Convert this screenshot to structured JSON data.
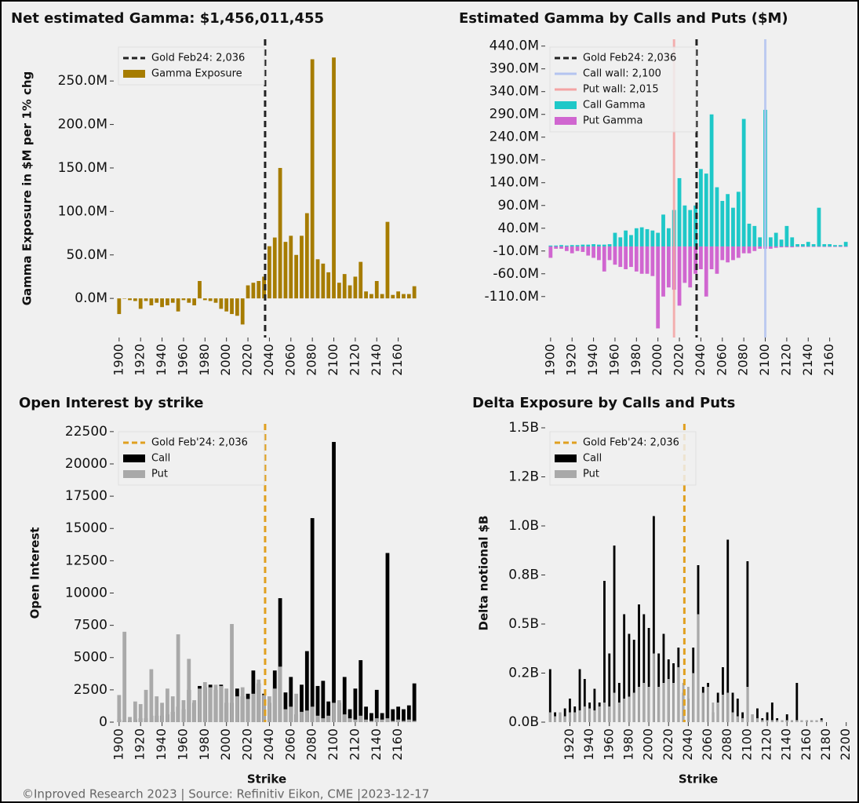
{
  "footer": "©Inproved Research 2023 | Source: Refinitiv Eikon, CME |2023-12-17",
  "chart_data": [
    {
      "type": "bar",
      "title": "Net estimated Gamma: $1,456,011,455",
      "ylabel": "Gamma Exposure in $M per 1% chg",
      "legend": "upper left",
      "x": [
        1900,
        1905,
        1910,
        1915,
        1920,
        1925,
        1930,
        1935,
        1940,
        1945,
        1950,
        1955,
        1960,
        1965,
        1970,
        1975,
        1980,
        1985,
        1990,
        1995,
        2000,
        2005,
        2010,
        2015,
        2020,
        2025,
        2030,
        2035,
        2040,
        2045,
        2050,
        2055,
        2060,
        2065,
        2070,
        2075,
        2080,
        2085,
        2090,
        2095,
        2100,
        2105,
        2110,
        2115,
        2120,
        2125,
        2130,
        2135,
        2140,
        2145,
        2150,
        2155,
        2160,
        2165,
        2170,
        2175
      ],
      "xlim": [
        1895,
        2180
      ],
      "xticks": [
        1900,
        1920,
        1940,
        1960,
        1980,
        2000,
        2020,
        2040,
        2060,
        2080,
        2100,
        2120,
        2140,
        2160
      ],
      "ylim": [
        -45,
        298
      ],
      "yticks": [
        {
          "value": 0,
          "label": "0.0M"
        },
        {
          "value": 50,
          "label": "50.0M"
        },
        {
          "value": 100,
          "label": "100.0M"
        },
        {
          "value": 150,
          "label": "150.0M"
        },
        {
          "value": 200,
          "label": "200.0M"
        },
        {
          "value": 250,
          "label": "250.0M"
        }
      ],
      "vlines": [
        {
          "name": "Gold Feb24: 2,036",
          "value": 2036,
          "color": "#222222",
          "dash": true
        }
      ],
      "series": [
        {
          "name": "Gamma Exposure",
          "color": "#a67c00",
          "values": [
            -18,
            0,
            -2,
            -3,
            -12,
            -3,
            -8,
            -5,
            -10,
            -8,
            -5,
            -15,
            -2,
            -5,
            -8,
            20,
            -2,
            -3,
            -5,
            -12,
            -15,
            -18,
            -20,
            -30,
            15,
            18,
            20,
            25,
            60,
            70,
            150,
            65,
            72,
            50,
            72,
            98,
            275,
            45,
            40,
            30,
            277,
            18,
            28,
            15,
            25,
            42,
            8,
            5,
            20,
            5,
            88,
            4,
            8,
            5,
            5,
            14
          ]
        }
      ]
    },
    {
      "type": "bar",
      "title": "Estimated Gamma by Calls and Puts ($M)",
      "legend": "upper left",
      "x": [
        1900,
        1905,
        1910,
        1915,
        1920,
        1925,
        1930,
        1935,
        1940,
        1945,
        1950,
        1955,
        1960,
        1965,
        1970,
        1975,
        1980,
        1985,
        1990,
        1995,
        2000,
        2005,
        2010,
        2015,
        2020,
        2025,
        2030,
        2035,
        2040,
        2045,
        2050,
        2055,
        2060,
        2065,
        2070,
        2075,
        2080,
        2085,
        2090,
        2095,
        2100,
        2105,
        2110,
        2115,
        2120,
        2125,
        2130,
        2135,
        2140,
        2145,
        2150,
        2155,
        2160,
        2165,
        2170,
        2175
      ],
      "xlim": [
        1895,
        2180
      ],
      "xticks": [
        1900,
        1920,
        1940,
        1960,
        1980,
        2000,
        2020,
        2040,
        2060,
        2080,
        2100,
        2120,
        2140,
        2160
      ],
      "ylim": [
        -200,
        455
      ],
      "yticks": [
        {
          "value": 440,
          "label": "440.0M"
        },
        {
          "value": 390,
          "label": "390.0M"
        },
        {
          "value": 340,
          "label": "340.0M"
        },
        {
          "value": 290,
          "label": "290.0M"
        },
        {
          "value": 240,
          "label": "240.0M"
        },
        {
          "value": 190,
          "label": "190.0M"
        },
        {
          "value": 140,
          "label": "140.0M"
        },
        {
          "value": 90,
          "label": "90.0M"
        },
        {
          "value": 40,
          "label": "40.0M"
        },
        {
          "value": -10,
          "label": "-10.0M"
        },
        {
          "value": -60,
          "label": "-60.0M"
        },
        {
          "value": -110,
          "label": "-110.0M"
        }
      ],
      "vlines": [
        {
          "name": "Gold Feb24: 2,036",
          "value": 2036,
          "color": "#222222",
          "dash": true
        },
        {
          "name": "Call wall: 2,100",
          "value": 2100,
          "color": "#b4c4f0",
          "dash": false
        },
        {
          "name": "Put wall: 2,015",
          "value": 2015,
          "color": "#f4a4a4",
          "dash": false
        }
      ],
      "series": [
        {
          "name": "Call Gamma",
          "color": "#1ec8c8",
          "values": [
            2,
            2,
            3,
            2,
            3,
            3,
            4,
            4,
            5,
            4,
            4,
            5,
            30,
            20,
            35,
            25,
            40,
            42,
            38,
            35,
            30,
            70,
            40,
            80,
            150,
            90,
            80,
            90,
            170,
            160,
            290,
            130,
            100,
            115,
            85,
            120,
            280,
            50,
            45,
            20,
            300,
            20,
            30,
            15,
            45,
            20,
            5,
            5,
            10,
            5,
            85,
            5,
            5,
            3,
            3,
            10
          ]
        },
        {
          "name": "Put Gamma",
          "color": "#d066d0",
          "values": [
            -25,
            -5,
            -5,
            -10,
            -15,
            -10,
            -12,
            -20,
            -25,
            -30,
            -55,
            -30,
            -40,
            -45,
            -50,
            -45,
            -55,
            -60,
            -60,
            -65,
            -180,
            -110,
            -90,
            -95,
            -130,
            -80,
            -90,
            -60,
            -50,
            -110,
            -50,
            -60,
            -30,
            -35,
            -30,
            -25,
            -15,
            -15,
            -10,
            -5,
            -5,
            -5,
            -3,
            -2,
            -2,
            -2,
            -1,
            -1,
            -1,
            -1,
            -1,
            -1,
            -1,
            -1,
            -1,
            -1
          ]
        }
      ]
    },
    {
      "type": "bar",
      "title": "Open Interest by strike",
      "ylabel": "Open Interest",
      "xlabel": "Strike",
      "legend": "upper left",
      "x": [
        1900,
        1905,
        1910,
        1915,
        1920,
        1925,
        1930,
        1935,
        1940,
        1945,
        1950,
        1955,
        1960,
        1965,
        1970,
        1975,
        1980,
        1985,
        1990,
        1995,
        2000,
        2005,
        2010,
        2015,
        2020,
        2025,
        2030,
        2035,
        2040,
        2045,
        2050,
        2055,
        2060,
        2065,
        2070,
        2075,
        2080,
        2085,
        2090,
        2095,
        2100,
        2105,
        2110,
        2115,
        2120,
        2125,
        2130,
        2135,
        2140,
        2145,
        2150,
        2155,
        2160,
        2165,
        2170,
        2175
      ],
      "xlim": [
        1895,
        2180
      ],
      "xticks": [
        1900,
        1920,
        1940,
        1960,
        1980,
        2000,
        2020,
        2040,
        2060,
        2080,
        2100,
        2120,
        2140,
        2160
      ],
      "ylim": [
        0,
        23100
      ],
      "yticks": [
        0,
        2500,
        5000,
        7500,
        10000,
        12500,
        15000,
        17500,
        20000,
        22500
      ],
      "vlines": [
        {
          "name": "Gold Feb'24: 2,036",
          "value": 2036,
          "color": "#e0a020",
          "dash": true
        }
      ],
      "series": [
        {
          "name": "Call",
          "color": "#000000",
          "values": [
            200,
            100,
            100,
            200,
            300,
            300,
            500,
            500,
            500,
            600,
            800,
            1200,
            1000,
            2500,
            1500,
            2800,
            2700,
            2900,
            2500,
            2900,
            1500,
            1500,
            2600,
            2000,
            2200,
            4000,
            3000,
            2200,
            1500,
            4000,
            9600,
            2300,
            3500,
            600,
            2900,
            5500,
            15800,
            2800,
            3200,
            1600,
            21700,
            1500,
            3500,
            1000,
            2600,
            4800,
            1200,
            700,
            2500,
            700,
            13100,
            1000,
            1200,
            1000,
            1300,
            3000
          ]
        },
        {
          "name": "Put",
          "color": "#a9a9a9",
          "values": [
            2100,
            7000,
            400,
            1600,
            1400,
            2500,
            4100,
            2000,
            1500,
            2600,
            2000,
            6800,
            1700,
            4900,
            1700,
            2600,
            3100,
            2700,
            2900,
            2800,
            2600,
            7600,
            2000,
            2700,
            1800,
            2200,
            3300,
            2100,
            2000,
            2600,
            4300,
            1000,
            1200,
            2200,
            800,
            900,
            1200,
            500,
            300,
            500,
            1500,
            1700,
            600,
            300,
            200,
            500,
            200,
            100,
            300,
            200,
            300,
            100,
            200,
            100,
            200,
            100
          ]
        }
      ]
    },
    {
      "type": "bar",
      "title": "Delta Exposure by Calls and Puts",
      "ylabel": "Delta notional $B",
      "xlabel": "Strike",
      "legend": "upper left",
      "x": [
        1900,
        1905,
        1910,
        1915,
        1920,
        1925,
        1930,
        1935,
        1940,
        1945,
        1950,
        1955,
        1960,
        1965,
        1970,
        1975,
        1980,
        1985,
        1990,
        1995,
        2000,
        2005,
        2010,
        2015,
        2020,
        2025,
        2030,
        2035,
        2040,
        2045,
        2050,
        2055,
        2060,
        2065,
        2070,
        2075,
        2080,
        2085,
        2090,
        2095,
        2100,
        2105,
        2110,
        2115,
        2120,
        2125,
        2130,
        2135,
        2140,
        2145,
        2150,
        2155,
        2160,
        2165,
        2170,
        2175
      ],
      "xlim": [
        1895,
        2205
      ],
      "xticks": [
        1920,
        1940,
        1960,
        1980,
        2000,
        2020,
        2040,
        2060,
        2080,
        2100,
        2120,
        2140,
        2160,
        2180,
        2200
      ],
      "ylim": [
        0,
        1.52
      ],
      "yticks": [
        {
          "value": 0,
          "label": "0.0B"
        },
        {
          "value": 0.25,
          "label": "0.2B"
        },
        {
          "value": 0.5,
          "label": "0.5B"
        },
        {
          "value": 0.75,
          "label": "0.8B"
        },
        {
          "value": 1,
          "label": "1.0B"
        },
        {
          "value": 1.25,
          "label": "1.2B"
        },
        {
          "value": 1.5,
          "label": "1.5B"
        }
      ],
      "vlines": [
        {
          "name": "Gold Feb'24: 2,036",
          "value": 2036,
          "color": "#e0a020",
          "dash": true
        }
      ],
      "series": [
        {
          "name": "Call",
          "color": "#000000",
          "values": [
            0.27,
            0.05,
            0.05,
            0.07,
            0.12,
            0.08,
            0.27,
            0.22,
            0.1,
            0.17,
            0.1,
            0.72,
            0.35,
            0.9,
            0.2,
            0.55,
            0.45,
            0.42,
            0.6,
            0.55,
            0.48,
            1.05,
            0.35,
            0.45,
            0.32,
            0.3,
            0.38,
            0.15,
            0.12,
            0.38,
            0.8,
            0.18,
            0.2,
            0.05,
            0.15,
            0.28,
            0.93,
            0.15,
            0.12,
            0.05,
            0.82,
            0.04,
            0.07,
            0.02,
            0.05,
            0.1,
            0.02,
            0.01,
            0.04,
            0.01,
            0.2,
            0.01,
            0.01,
            0.01,
            0.01,
            0.02
          ]
        },
        {
          "name": "Put",
          "color": "#a9a9a9",
          "values": [
            0.05,
            0.03,
            0.05,
            0.03,
            0.05,
            0.05,
            0.06,
            0.08,
            0.07,
            0.06,
            0.08,
            0.1,
            0.08,
            0.15,
            0.1,
            0.12,
            0.13,
            0.15,
            0.18,
            0.2,
            0.18,
            0.35,
            0.18,
            0.2,
            0.22,
            0.2,
            0.28,
            0.2,
            0.18,
            0.25,
            0.55,
            0.15,
            0.18,
            0.1,
            0.1,
            0.14,
            0.15,
            0.05,
            0.03,
            0.02,
            0.18,
            0.04,
            0.02,
            0.01,
            0.01,
            0.01,
            0.01,
            0.01,
            0.01,
            0.01,
            0.01,
            0.01,
            0.01,
            0.01,
            0.01,
            0.01
          ]
        }
      ]
    }
  ]
}
